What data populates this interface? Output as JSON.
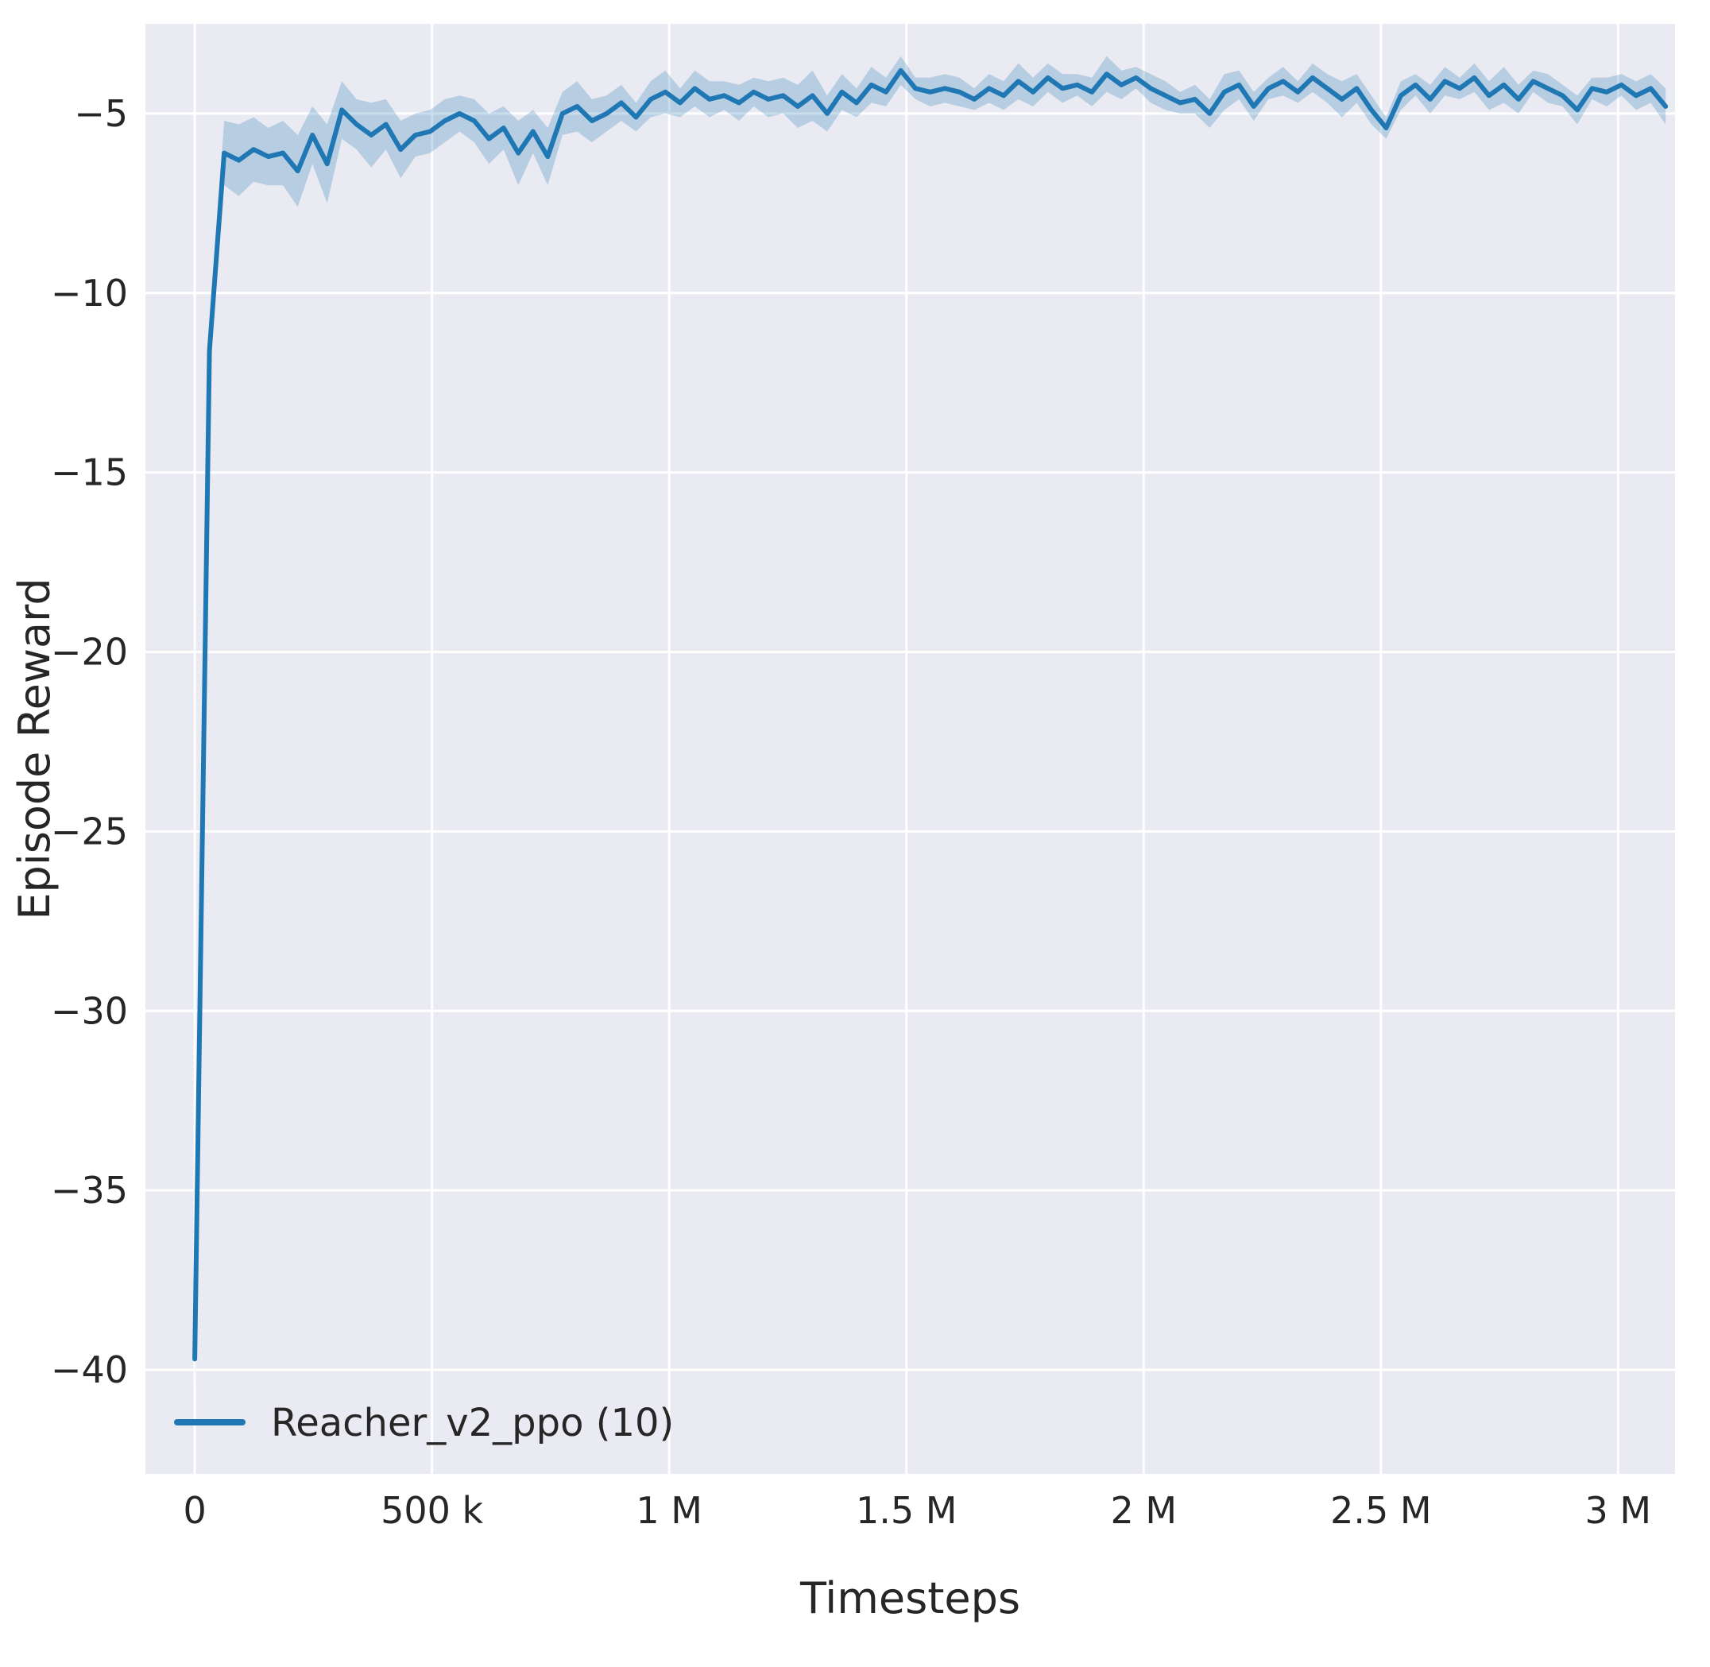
{
  "chart_data": {
    "type": "line",
    "title": "",
    "xlabel": "Timesteps",
    "ylabel": "Episode Reward",
    "grid": true,
    "legend_position": "lower left",
    "xlim": [
      -104000,
      3120000
    ],
    "ylim": [
      -42.9,
      -2.5
    ],
    "xticks": {
      "values": [
        0,
        500000,
        1000000,
        1500000,
        2000000,
        2500000,
        3000000
      ],
      "labels": [
        "0",
        "500 k",
        "1 M",
        "1.5 M",
        "2 M",
        "2.5 M",
        "3 M"
      ]
    },
    "yticks": {
      "values": [
        -40,
        -35,
        -30,
        -25,
        -20,
        -15,
        -10,
        -5
      ],
      "labels": [
        "−40",
        "−35",
        "−30",
        "−25",
        "−20",
        "−15",
        "−10",
        "−5"
      ]
    },
    "colors": {
      "figure_bg": "#ffffff",
      "axes_bg": "#eaeaf2",
      "grid": "#ffffff",
      "line": "#1f77b4",
      "band": "#1f77b4",
      "band_opacity": 0.25,
      "text": "#262626"
    },
    "legend": [
      {
        "name": "Reacher_v2_ppo (10)",
        "color": "#1f77b4"
      }
    ],
    "series": [
      {
        "name": "Reacher_v2_ppo (10)",
        "x": [
          0,
          31000,
          62000,
          93000,
          124000,
          155000,
          186000,
          217000,
          248000,
          279000,
          310000,
          341000,
          372000,
          403000,
          434000,
          465000,
          496000,
          527000,
          558000,
          589000,
          620000,
          651000,
          682000,
          713000,
          744000,
          775000,
          806000,
          837000,
          868000,
          899000,
          930000,
          961000,
          992000,
          1023000,
          1054000,
          1085000,
          1116000,
          1147000,
          1178000,
          1209000,
          1240000,
          1271000,
          1302000,
          1333000,
          1364000,
          1395000,
          1426000,
          1457000,
          1488000,
          1519000,
          1550000,
          1581000,
          1612000,
          1643000,
          1674000,
          1705000,
          1736000,
          1767000,
          1798000,
          1829000,
          1860000,
          1891000,
          1922000,
          1953000,
          1984000,
          2015000,
          2046000,
          2077000,
          2108000,
          2139000,
          2170000,
          2201000,
          2232000,
          2263000,
          2294000,
          2325000,
          2356000,
          2387000,
          2418000,
          2449000,
          2480000,
          2511000,
          2542000,
          2573000,
          2604000,
          2635000,
          2666000,
          2697000,
          2728000,
          2759000,
          2790000,
          2821000,
          2852000,
          2883000,
          2914000,
          2945000,
          2976000,
          3007000,
          3038000,
          3069000,
          3100000
        ],
        "y": [
          -39.7,
          -11.6,
          -6.1,
          -6.3,
          -6.0,
          -6.2,
          -6.1,
          -6.6,
          -5.6,
          -6.4,
          -4.9,
          -5.3,
          -5.6,
          -5.3,
          -6.0,
          -5.6,
          -5.5,
          -5.2,
          -5.0,
          -5.2,
          -5.7,
          -5.4,
          -6.1,
          -5.5,
          -6.2,
          -5.0,
          -4.8,
          -5.2,
          -5.0,
          -4.7,
          -5.1,
          -4.6,
          -4.4,
          -4.7,
          -4.3,
          -4.6,
          -4.5,
          -4.7,
          -4.4,
          -4.6,
          -4.5,
          -4.8,
          -4.5,
          -5.0,
          -4.4,
          -4.7,
          -4.2,
          -4.4,
          -3.8,
          -4.3,
          -4.4,
          -4.3,
          -4.4,
          -4.6,
          -4.3,
          -4.5,
          -4.1,
          -4.4,
          -4.0,
          -4.3,
          -4.2,
          -4.4,
          -3.9,
          -4.2,
          -4.0,
          -4.3,
          -4.5,
          -4.7,
          -4.6,
          -5.0,
          -4.4,
          -4.2,
          -4.8,
          -4.3,
          -4.1,
          -4.4,
          -4.0,
          -4.3,
          -4.6,
          -4.3,
          -4.9,
          -5.4,
          -4.5,
          -4.2,
          -4.6,
          -4.1,
          -4.3,
          -4.0,
          -4.5,
          -4.2,
          -4.6,
          -4.1,
          -4.3,
          -4.5,
          -4.9,
          -4.3,
          -4.4,
          -4.2,
          -4.5,
          -4.3,
          -4.8
        ],
        "band": [
          0.8,
          0.6,
          0.9,
          1.0,
          0.9,
          0.8,
          0.9,
          1.0,
          0.8,
          1.1,
          0.8,
          0.7,
          0.9,
          0.7,
          0.8,
          0.6,
          0.6,
          0.6,
          0.5,
          0.6,
          0.7,
          0.6,
          0.9,
          0.6,
          0.8,
          0.6,
          0.7,
          0.6,
          0.5,
          0.5,
          0.4,
          0.5,
          0.6,
          0.4,
          0.5,
          0.5,
          0.4,
          0.5,
          0.4,
          0.5,
          0.5,
          0.6,
          0.7,
          0.5,
          0.5,
          0.4,
          0.5,
          0.4,
          0.4,
          0.3,
          0.4,
          0.4,
          0.4,
          0.3,
          0.4,
          0.4,
          0.5,
          0.4,
          0.4,
          0.4,
          0.3,
          0.4,
          0.5,
          0.4,
          0.3,
          0.4,
          0.4,
          0.3,
          0.4,
          0.4,
          0.5,
          0.4,
          0.4,
          0.3,
          0.4,
          0.3,
          0.4,
          0.4,
          0.5,
          0.4,
          0.4,
          0.3,
          0.4,
          0.3,
          0.4,
          0.4,
          0.3,
          0.4,
          0.4,
          0.5,
          0.4,
          0.3,
          0.4,
          0.3,
          0.4,
          0.3,
          0.4,
          0.3,
          0.4,
          0.4,
          0.5
        ]
      }
    ]
  }
}
